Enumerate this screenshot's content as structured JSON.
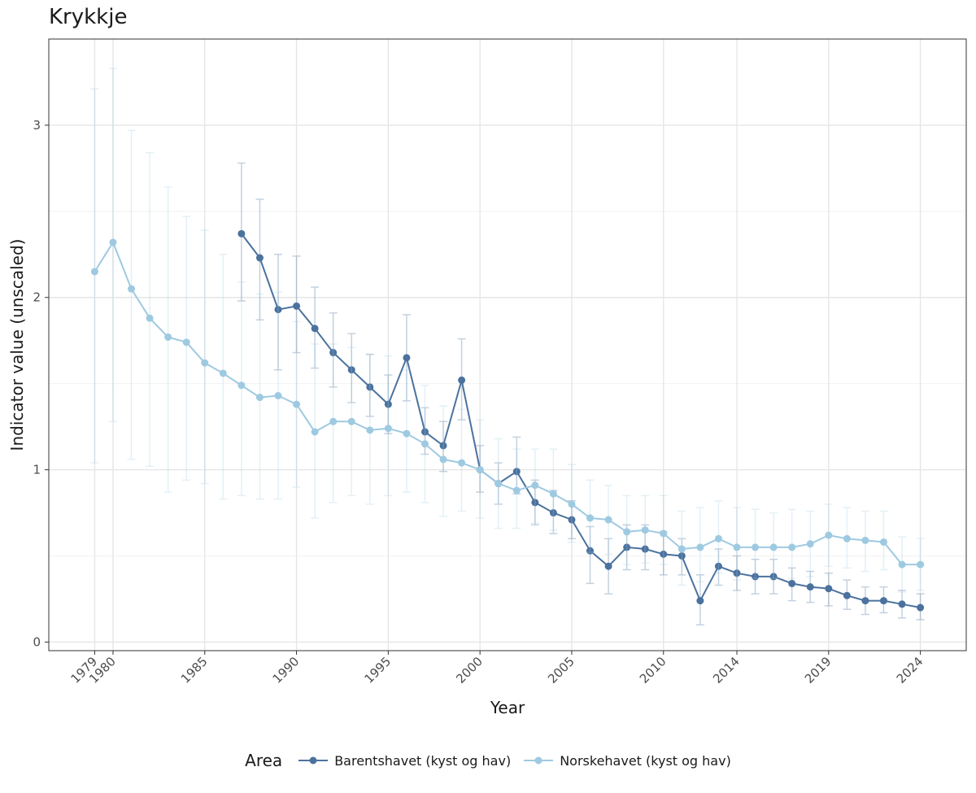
{
  "chart_data": {
    "type": "line",
    "title": "Krykkje",
    "xlabel": "Year",
    "ylabel": "Indicator value (unscaled)",
    "xlim": [
      1976.5,
      2026.5
    ],
    "ylim": [
      -0.05,
      3.5
    ],
    "x_ticks": [
      1979,
      1980,
      1985,
      1990,
      1995,
      2000,
      2005,
      2010,
      2014,
      2019,
      2024
    ],
    "y_ticks": [
      0,
      1,
      2,
      3
    ],
    "grid": true,
    "legend": {
      "title": "Area",
      "position": "bottom"
    },
    "series": [
      {
        "name": "Barentshavet (kyst og hav)",
        "color": "#4b729e",
        "x": [
          1987,
          1988,
          1989,
          1990,
          1991,
          1992,
          1993,
          1994,
          1995,
          1996,
          1997,
          1998,
          1999,
          2000,
          2001,
          2002,
          2003,
          2004,
          2005,
          2006,
          2007,
          2008,
          2009,
          2010,
          2011,
          2012,
          2013,
          2014,
          2015,
          2016,
          2017,
          2018,
          2019,
          2020,
          2021,
          2022,
          2023,
          2024
        ],
        "y": [
          2.37,
          2.23,
          1.93,
          1.95,
          1.82,
          1.68,
          1.58,
          1.48,
          1.38,
          1.65,
          1.22,
          1.14,
          1.52,
          1.0,
          0.92,
          0.99,
          0.81,
          0.75,
          0.71,
          0.53,
          0.44,
          0.55,
          0.54,
          0.51,
          0.5,
          0.24,
          0.44,
          0.4,
          0.38,
          0.38,
          0.34,
          0.32,
          0.31,
          0.27,
          0.24,
          0.24,
          0.22,
          0.2
        ],
        "lower": [
          1.98,
          1.87,
          1.58,
          1.68,
          1.59,
          1.48,
          1.39,
          1.31,
          1.21,
          1.4,
          1.09,
          0.99,
          1.29,
          0.87,
          0.8,
          0.86,
          0.68,
          0.63,
          0.6,
          0.34,
          0.28,
          0.42,
          0.42,
          0.39,
          0.39,
          0.1,
          0.33,
          0.3,
          0.28,
          0.28,
          0.24,
          0.23,
          0.21,
          0.19,
          0.16,
          0.17,
          0.14,
          0.13
        ],
        "upper": [
          2.78,
          2.57,
          2.25,
          2.24,
          2.06,
          1.91,
          1.79,
          1.67,
          1.55,
          1.9,
          1.36,
          1.28,
          1.76,
          1.14,
          1.04,
          1.19,
          0.94,
          0.88,
          0.82,
          0.67,
          0.6,
          0.68,
          0.68,
          0.64,
          0.6,
          0.39,
          0.54,
          0.5,
          0.48,
          0.48,
          0.43,
          0.41,
          0.4,
          0.36,
          0.32,
          0.32,
          0.3,
          0.28
        ]
      },
      {
        "name": "Norskehavet (kyst og hav)",
        "color": "#9ecae1",
        "x": [
          1979,
          1980,
          1981,
          1982,
          1983,
          1984,
          1985,
          1986,
          1987,
          1988,
          1989,
          1990,
          1991,
          1992,
          1993,
          1994,
          1995,
          1996,
          1997,
          1998,
          1999,
          2000,
          2001,
          2002,
          2003,
          2004,
          2005,
          2006,
          2007,
          2008,
          2009,
          2010,
          2011,
          2012,
          2013,
          2014,
          2015,
          2016,
          2017,
          2018,
          2019,
          2020,
          2021,
          2022,
          2023,
          2024
        ],
        "y": [
          2.15,
          2.32,
          2.05,
          1.88,
          1.77,
          1.74,
          1.62,
          1.56,
          1.49,
          1.42,
          1.43,
          1.38,
          1.22,
          1.28,
          1.28,
          1.23,
          1.24,
          1.21,
          1.15,
          1.06,
          1.04,
          1.0,
          0.92,
          0.88,
          0.91,
          0.86,
          0.8,
          0.72,
          0.71,
          0.64,
          0.65,
          0.63,
          0.54,
          0.55,
          0.6,
          0.55,
          0.55,
          0.55,
          0.55,
          0.57,
          0.62,
          0.6,
          0.59,
          0.58,
          0.45,
          0.45
        ],
        "lower": [
          1.04,
          1.28,
          1.06,
          1.02,
          0.87,
          0.94,
          0.92,
          0.83,
          0.85,
          0.83,
          0.83,
          0.9,
          0.72,
          0.81,
          0.85,
          0.8,
          0.85,
          0.87,
          0.81,
          0.73,
          0.76,
          0.72,
          0.66,
          0.66,
          0.69,
          0.65,
          0.58,
          0.52,
          0.51,
          0.45,
          0.46,
          0.45,
          0.33,
          0.35,
          0.4,
          0.36,
          0.37,
          0.37,
          0.37,
          0.38,
          0.44,
          0.43,
          0.41,
          0.42,
          0.29,
          0.3
        ],
        "upper": [
          3.21,
          3.33,
          2.97,
          2.84,
          2.64,
          2.47,
          2.39,
          2.25,
          2.09,
          2.02,
          2.03,
          1.86,
          1.73,
          1.73,
          1.71,
          1.67,
          1.66,
          1.58,
          1.49,
          1.37,
          1.35,
          1.29,
          1.18,
          1.12,
          1.12,
          1.12,
          1.03,
          0.94,
          0.91,
          0.85,
          0.85,
          0.85,
          0.76,
          0.78,
          0.82,
          0.78,
          0.77,
          0.75,
          0.77,
          0.76,
          0.8,
          0.78,
          0.76,
          0.76,
          0.61,
          0.6
        ]
      }
    ]
  }
}
